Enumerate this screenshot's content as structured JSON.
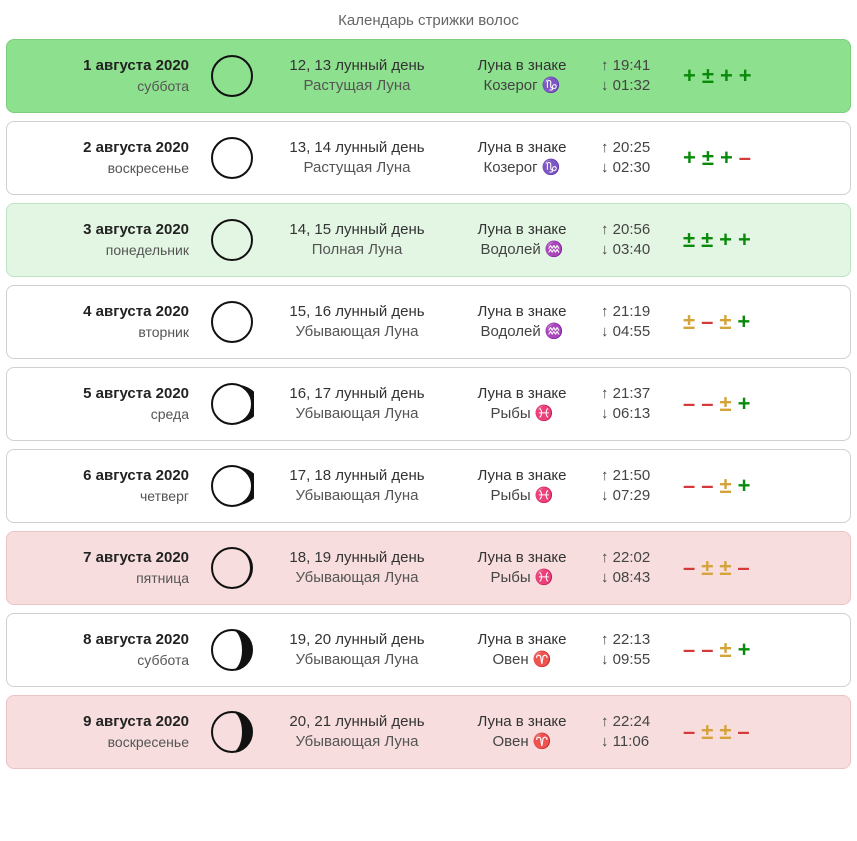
{
  "title": "Календарь стрижки волос",
  "zodiacGlyphs": {
    "Козерог": "♑",
    "Водолей": "♒",
    "Рыбы": "♓",
    "Овен": "♈"
  },
  "rows": [
    {
      "date": "1 августа 2020",
      "weekday": "суббота",
      "lunarDay": "12, 13 лунный день",
      "phase": "Растущая Луна",
      "signLabel": "Луна в знаке",
      "sign": "Козерог",
      "rise": "19:41",
      "set": "01:32",
      "moonType": "circle",
      "tone": "green",
      "rating": [
        "plus",
        "pm-g",
        "plus",
        "plus"
      ]
    },
    {
      "date": "2 августа 2020",
      "weekday": "воскресенье",
      "lunarDay": "13, 14 лунный день",
      "phase": "Растущая Луна",
      "signLabel": "Луна в знаке",
      "sign": "Козерог",
      "rise": "20:25",
      "set": "02:30",
      "moonType": "circle",
      "tone": "white",
      "rating": [
        "plus",
        "pm-g",
        "plus",
        "minus"
      ]
    },
    {
      "date": "3 августа 2020",
      "weekday": "понедельник",
      "lunarDay": "14, 15 лунный день",
      "phase": "Полная Луна",
      "signLabel": "Луна в знаке",
      "sign": "Водолей",
      "rise": "20:56",
      "set": "03:40",
      "moonType": "circle",
      "tone": "lightgreen",
      "rating": [
        "pm-g",
        "pm-g",
        "plus",
        "plus"
      ]
    },
    {
      "date": "4 августа 2020",
      "weekday": "вторник",
      "lunarDay": "15, 16 лунный день",
      "phase": "Убывающая Луна",
      "signLabel": "Луна в знаке",
      "sign": "Водолей",
      "rise": "21:19",
      "set": "04:55",
      "moonType": "circle",
      "tone": "white",
      "rating": [
        "pm-o",
        "minus",
        "pm-o",
        "plus"
      ]
    },
    {
      "date": "5 августа 2020",
      "weekday": "среда",
      "lunarDay": "16, 17 лунный день",
      "phase": "Убывающая Луна",
      "signLabel": "Луна в знаке",
      "sign": "Рыбы",
      "rise": "21:37",
      "set": "06:13",
      "moonType": "waning-thin",
      "tone": "white",
      "rating": [
        "minus",
        "minus",
        "pm-o",
        "plus"
      ]
    },
    {
      "date": "6 августа 2020",
      "weekday": "четверг",
      "lunarDay": "17, 18 лунный день",
      "phase": "Убывающая Луна",
      "signLabel": "Луна в знаке",
      "sign": "Рыбы",
      "rise": "21:50",
      "set": "07:29",
      "moonType": "waning-thin",
      "tone": "white",
      "rating": [
        "minus",
        "minus",
        "pm-o",
        "plus"
      ]
    },
    {
      "date": "7 августа 2020",
      "weekday": "пятница",
      "lunarDay": "18, 19 лунный день",
      "phase": "Убывающая Луна",
      "signLabel": "Луна в знаке",
      "sign": "Рыбы",
      "rise": "22:02",
      "set": "08:43",
      "moonType": "waning-med",
      "tone": "pink",
      "rating": [
        "minus",
        "pm-o",
        "pm-o",
        "minus"
      ]
    },
    {
      "date": "8 августа 2020",
      "weekday": "суббота",
      "lunarDay": "19, 20 лунный день",
      "phase": "Убывающая Луна",
      "signLabel": "Луна в знаке",
      "sign": "Овен",
      "rise": "22:13",
      "set": "09:55",
      "moonType": "waning-thick",
      "tone": "white",
      "rating": [
        "minus",
        "minus",
        "pm-o",
        "plus"
      ]
    },
    {
      "date": "9 августа 2020",
      "weekday": "воскресенье",
      "lunarDay": "20, 21 лунный день",
      "phase": "Убывающая Луна",
      "signLabel": "Луна в знаке",
      "sign": "Овен",
      "rise": "22:24",
      "set": "11:06",
      "moonType": "waning-thick",
      "tone": "pink",
      "rating": [
        "minus",
        "pm-o",
        "pm-o",
        "minus"
      ]
    }
  ]
}
